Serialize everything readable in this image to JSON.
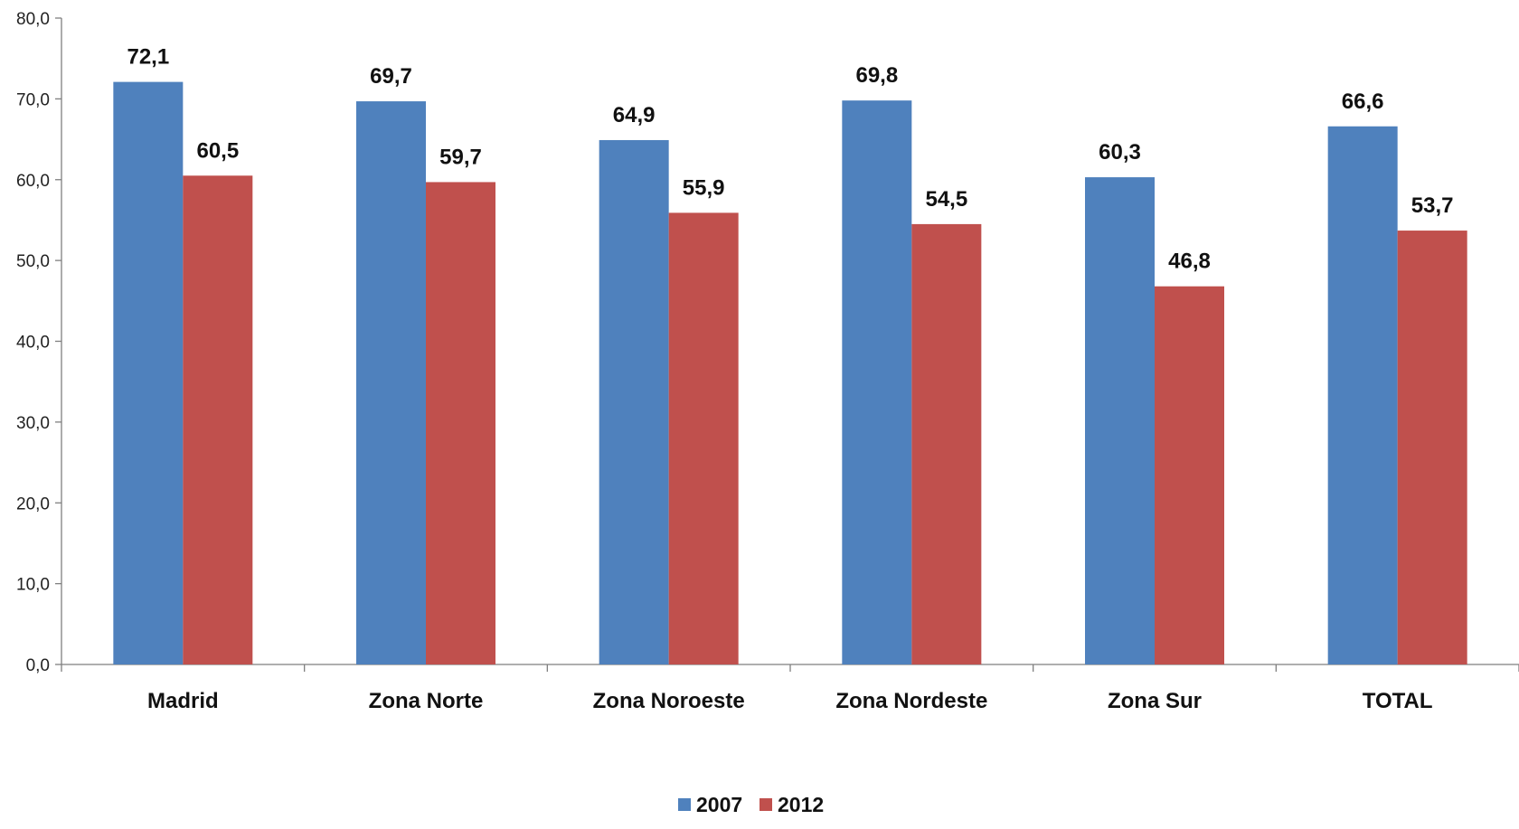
{
  "chart_data": {
    "type": "bar",
    "categories": [
      "Madrid",
      "Zona Norte",
      "Zona Noroeste",
      "Zona Nordeste",
      "Zona Sur",
      "TOTAL"
    ],
    "series": [
      {
        "name": "2007",
        "color": "#4F81BD",
        "values": [
          72.1,
          69.7,
          64.9,
          69.8,
          60.3,
          66.6
        ],
        "labels": [
          "72,1",
          "69,7",
          "64,9",
          "69,8",
          "60,3",
          "66,6"
        ]
      },
      {
        "name": "2012",
        "color": "#C0504D",
        "values": [
          60.5,
          59.7,
          55.9,
          54.5,
          46.8,
          53.7
        ],
        "labels": [
          "60,5",
          "59,7",
          "55,9",
          "54,5",
          "46,8",
          "53,7"
        ]
      }
    ],
    "ylim": [
      0,
      80
    ],
    "yticks": [
      0,
      10,
      20,
      30,
      40,
      50,
      60,
      70,
      80
    ],
    "ytick_labels": [
      "0,0",
      "10,0",
      "20,0",
      "30,0",
      "40,0",
      "50,0",
      "60,0",
      "70,0",
      "80,0"
    ],
    "title": "",
    "xlabel": "",
    "ylabel": "",
    "grid": false,
    "legend_position": "bottom-center"
  }
}
